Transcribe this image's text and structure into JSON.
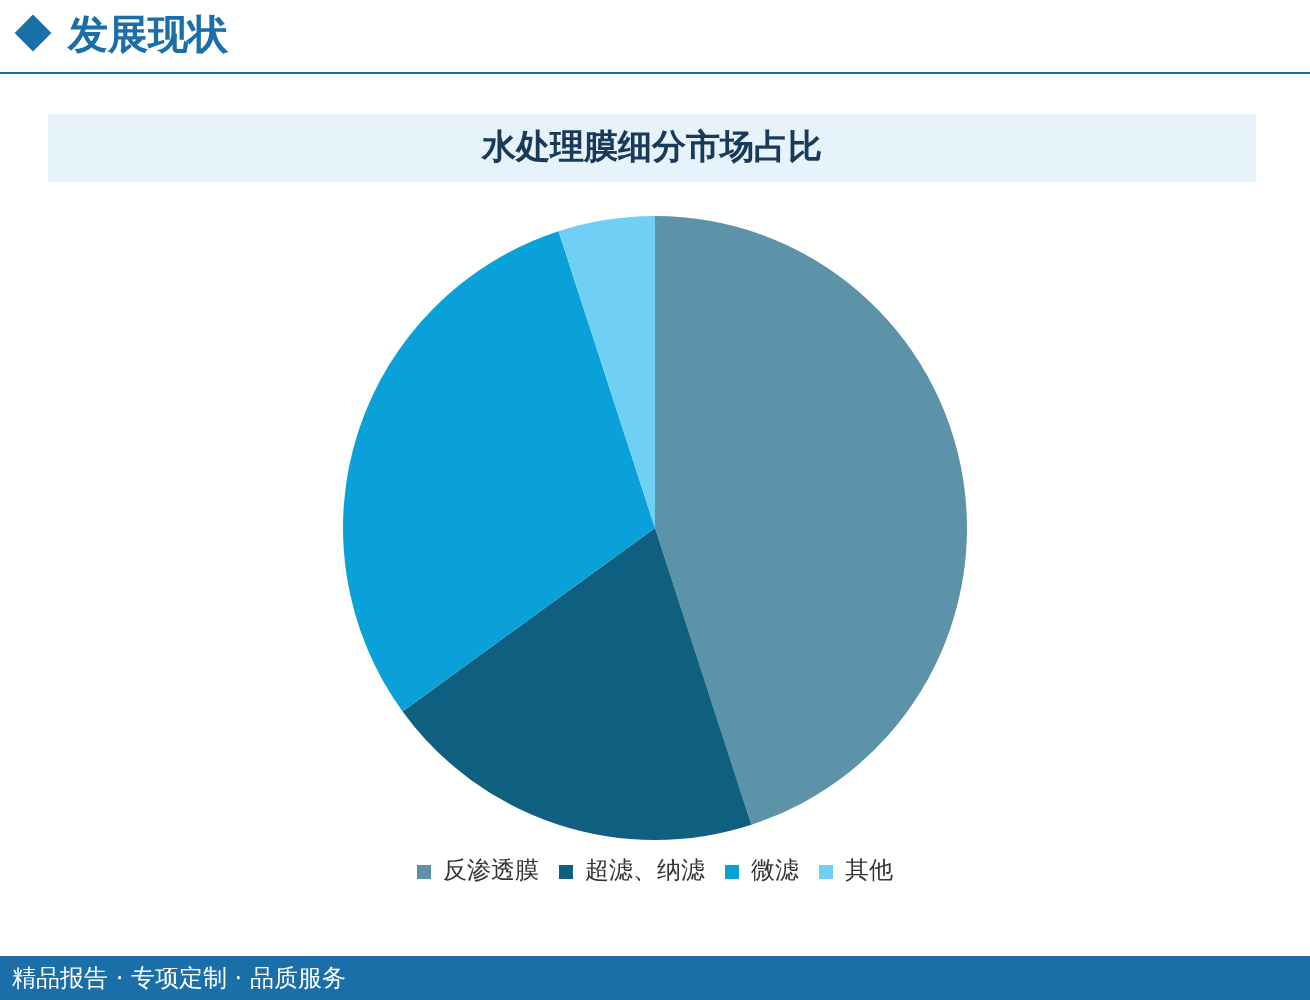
{
  "chart_data": {
    "type": "pie",
    "title": "水处理膜细分市场占比",
    "categories": [
      "反渗透膜",
      "超滤、纳滤",
      "微滤",
      "其他"
    ],
    "values": [
      45,
      20,
      30,
      5
    ],
    "colors": [
      "#5d93a9",
      "#0f5f80",
      "#0aa1d9",
      "#70cff4"
    ],
    "legend": "bottom",
    "annotations": [
      "发展现状",
      "精品报告 · 专项定制 · 品质服务"
    ]
  }
}
